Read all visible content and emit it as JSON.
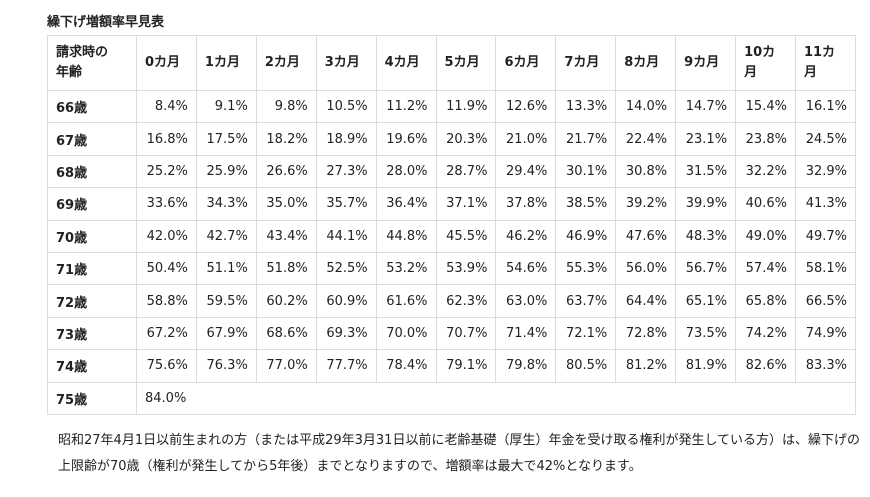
{
  "title": "繰下げ増額率早見表",
  "table": {
    "header": [
      "請求時の\n年齢",
      "0カ月",
      "1カ月",
      "2カ月",
      "3カ月",
      "4カ月",
      "5カ月",
      "6カ月",
      "7カ月",
      "8カ月",
      "9カ月",
      "10カ月",
      "11カ月"
    ],
    "rows": [
      [
        "66歳",
        "8.4%",
        "9.1%",
        "9.8%",
        "10.5%",
        "11.2%",
        "11.9%",
        "12.6%",
        "13.3%",
        "14.0%",
        "14.7%",
        "15.4%",
        "16.1%"
      ],
      [
        "67歳",
        "16.8%",
        "17.5%",
        "18.2%",
        "18.9%",
        "19.6%",
        "20.3%",
        "21.0%",
        "21.7%",
        "22.4%",
        "23.1%",
        "23.8%",
        "24.5%"
      ],
      [
        "68歳",
        "25.2%",
        "25.9%",
        "26.6%",
        "27.3%",
        "28.0%",
        "28.7%",
        "29.4%",
        "30.1%",
        "30.8%",
        "31.5%",
        "32.2%",
        "32.9%"
      ],
      [
        "69歳",
        "33.6%",
        "34.3%",
        "35.0%",
        "35.7%",
        "36.4%",
        "37.1%",
        "37.8%",
        "38.5%",
        "39.2%",
        "39.9%",
        "40.6%",
        "41.3%"
      ],
      [
        "70歳",
        "42.0%",
        "42.7%",
        "43.4%",
        "44.1%",
        "44.8%",
        "45.5%",
        "46.2%",
        "46.9%",
        "47.6%",
        "48.3%",
        "49.0%",
        "49.7%"
      ],
      [
        "71歳",
        "50.4%",
        "51.1%",
        "51.8%",
        "52.5%",
        "53.2%",
        "53.9%",
        "54.6%",
        "55.3%",
        "56.0%",
        "56.7%",
        "57.4%",
        "58.1%"
      ],
      [
        "72歳",
        "58.8%",
        "59.5%",
        "60.2%",
        "60.9%",
        "61.6%",
        "62.3%",
        "63.0%",
        "63.7%",
        "64.4%",
        "65.1%",
        "65.8%",
        "66.5%"
      ],
      [
        "73歳",
        "67.2%",
        "67.9%",
        "68.6%",
        "69.3%",
        "70.0%",
        "70.7%",
        "71.4%",
        "72.1%",
        "72.8%",
        "73.5%",
        "74.2%",
        "74.9%"
      ],
      [
        "74歳",
        "75.6%",
        "76.3%",
        "77.0%",
        "77.7%",
        "78.4%",
        "79.1%",
        "79.8%",
        "80.5%",
        "81.2%",
        "81.9%",
        "82.6%",
        "83.3%"
      ],
      [
        "75歳",
        "84.0%"
      ]
    ]
  },
  "note": "昭和27年4月1日以前生まれの方（または平成29年3月31日以前に老齢基礎（厚生）年金を受け取る権利が発生している方）は、繰下げの上限齢が70歳（権利が発生してから5年後）までとなりますので、増額率は最大で42%となります。"
}
